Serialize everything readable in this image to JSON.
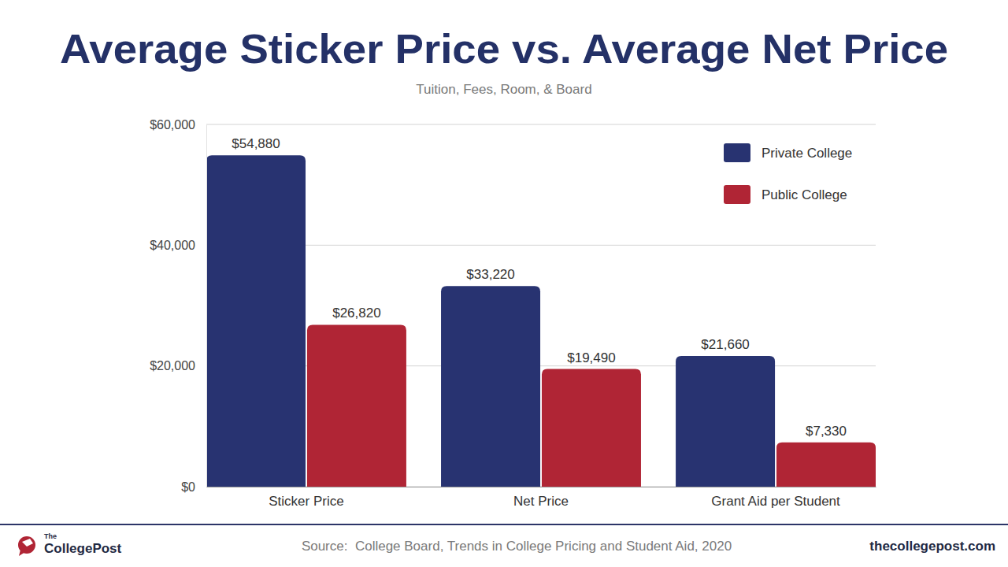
{
  "chart_data": {
    "type": "bar",
    "title": "Average Sticker Price vs. Average Net Price",
    "subtitle": "Tuition, Fees, Room, & Board",
    "categories": [
      "Sticker Price",
      "Net Price",
      "Grant Aid per Student"
    ],
    "series": [
      {
        "name": "Private College",
        "color": "#283371",
        "values": [
          54880,
          33220,
          21660
        ],
        "value_labels": [
          "$54,880",
          "$33,220",
          "$21,660"
        ]
      },
      {
        "name": "Public College",
        "color": "#b02535",
        "values": [
          26820,
          19490,
          7330
        ],
        "value_labels": [
          "$26,820",
          "$19,490",
          "$7,330"
        ]
      }
    ],
    "ylim": [
      0,
      60000
    ],
    "yticks": [
      {
        "value": 0,
        "label": "$0"
      },
      {
        "value": 20000,
        "label": "$20,000"
      },
      {
        "value": 40000,
        "label": "$40,000"
      },
      {
        "value": 60000,
        "label": "$60,000"
      }
    ],
    "grid": true,
    "legend": "top-right",
    "data_labels": true
  },
  "footer": {
    "source": "Source:  College Board, Trends in College Pricing and Student Aid, 2020",
    "site": "thecollegepost.com",
    "logo_small": "The",
    "logo_main": "CollegePost"
  }
}
